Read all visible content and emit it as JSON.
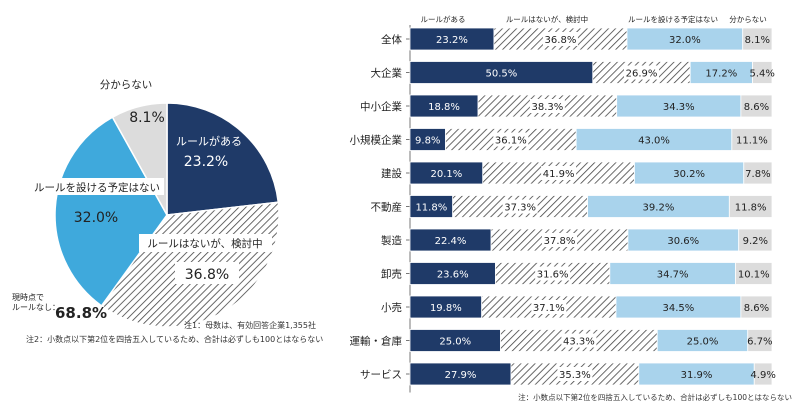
{
  "colors": {
    "navy": "#1f3a68",
    "light_blue": "#3fa9dc",
    "pale_blue": "#a9d3ec",
    "gray": "#dcdcdc",
    "hatch_line": "#444444",
    "label_box": "#ffffff"
  },
  "chart_data": [
    {
      "type": "pie",
      "slices": [
        {
          "name": "ルールがある",
          "value": 23.2,
          "label": "23.2%"
        },
        {
          "name": "ルールはないが、検討中",
          "value": 36.8,
          "label": "36.8%"
        },
        {
          "name": "ルールを設ける予定はない",
          "value": 32.0,
          "label": "32.0%"
        },
        {
          "name": "分からない",
          "value": 8.1,
          "label": "8.1%"
        }
      ],
      "summary_label": "現時点で\nルールなし：",
      "summary_value": "68.8%",
      "notes": [
        "注1：母数は、有効回答企業1,355社",
        "注2：小数点以下第2位を四捨五入しているため、合計は必ずしも100とはならない"
      ]
    },
    {
      "type": "bar",
      "stacked": true,
      "orientation": "horizontal",
      "categories": [
        "全体",
        "大企業",
        "中小企業",
        "小規模企業",
        "建設",
        "不動産",
        "製造",
        "卸売",
        "小売",
        "運輸・倉庫",
        "サービス"
      ],
      "series": [
        {
          "name": "ルールがある",
          "values": [
            23.2,
            50.5,
            18.8,
            9.8,
            20.1,
            11.8,
            22.4,
            23.6,
            19.8,
            25.0,
            27.9
          ]
        },
        {
          "name": "ルールはないが、検討中",
          "values": [
            36.8,
            26.9,
            38.3,
            36.1,
            41.9,
            37.3,
            37.8,
            31.6,
            37.1,
            43.3,
            35.3
          ]
        },
        {
          "name": "ルールを設ける予定はない",
          "values": [
            32.0,
            17.2,
            34.3,
            43.0,
            30.2,
            39.2,
            30.6,
            34.7,
            34.5,
            25.0,
            31.9
          ]
        },
        {
          "name": "分からない",
          "values": [
            8.1,
            5.4,
            8.6,
            11.1,
            7.8,
            11.8,
            9.2,
            10.1,
            8.6,
            6.7,
            4.9
          ]
        }
      ],
      "value_labels": [
        [
          "23.2%",
          "36.8%",
          "32.0%",
          "8.1%"
        ],
        [
          "50.5%",
          "26.9%",
          "17.2%",
          "5.4%"
        ],
        [
          "18.8%",
          "38.3%",
          "34.3%",
          "8.6%"
        ],
        [
          "9.8%",
          "36.1%",
          "43.0%",
          "11.1%"
        ],
        [
          "20.1%",
          "41.9%",
          "30.2%",
          "7.8%"
        ],
        [
          "11.8%",
          "37.3%",
          "39.2%",
          "11.8%"
        ],
        [
          "22.4%",
          "37.8%",
          "30.6%",
          "9.2%"
        ],
        [
          "23.6%",
          "31.6%",
          "34.7%",
          "10.1%"
        ],
        [
          "19.8%",
          "37.1%",
          "34.5%",
          "8.6%"
        ],
        [
          "25.0%",
          "43.3%",
          "25.0%",
          "6.7%"
        ],
        [
          "27.9%",
          "35.3%",
          "31.9%",
          "4.9%"
        ]
      ],
      "header_labels": [
        "ルールがある",
        "ルールはないが、検討中",
        "ルールを設ける予定はない",
        "分からない"
      ],
      "note": "注：小数点以下第2位を四捨五入しているため、合計は必ずしも100とはならない"
    }
  ]
}
